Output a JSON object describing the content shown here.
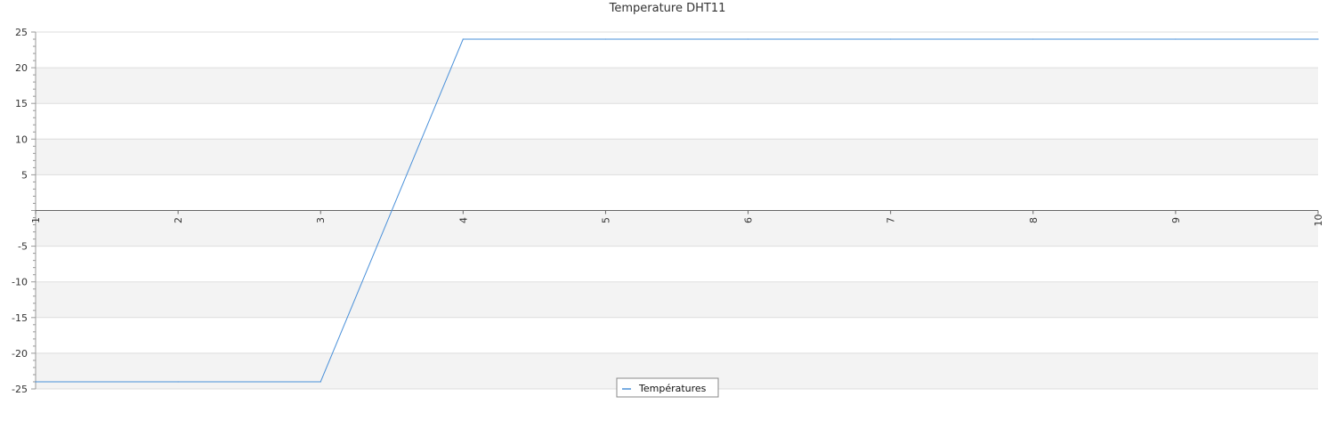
{
  "chart_data": {
    "type": "line",
    "title": "Temperature DHT11",
    "xlabel": "",
    "ylabel": "",
    "x": [
      1,
      2,
      3,
      4,
      5,
      6,
      7,
      8,
      9,
      10
    ],
    "series": [
      {
        "name": "Températures",
        "values": [
          -24,
          -24,
          -24,
          24,
          24,
          24,
          24,
          24,
          24,
          24
        ],
        "color": "#4a90d9"
      }
    ],
    "xlim": [
      1,
      10
    ],
    "ylim": [
      -25,
      25
    ],
    "x_ticks": [
      1,
      2,
      3,
      4,
      5,
      6,
      7,
      8,
      9,
      10
    ],
    "y_ticks": [
      -25,
      -20,
      -15,
      -10,
      -5,
      5,
      10,
      15,
      20,
      25
    ],
    "grid": true,
    "alternating_bands": true,
    "band_color": "#f3f3f3",
    "gridline_color": "#dddddd",
    "zero_axis_color": "#666666",
    "legend_position": "bottom-center"
  }
}
